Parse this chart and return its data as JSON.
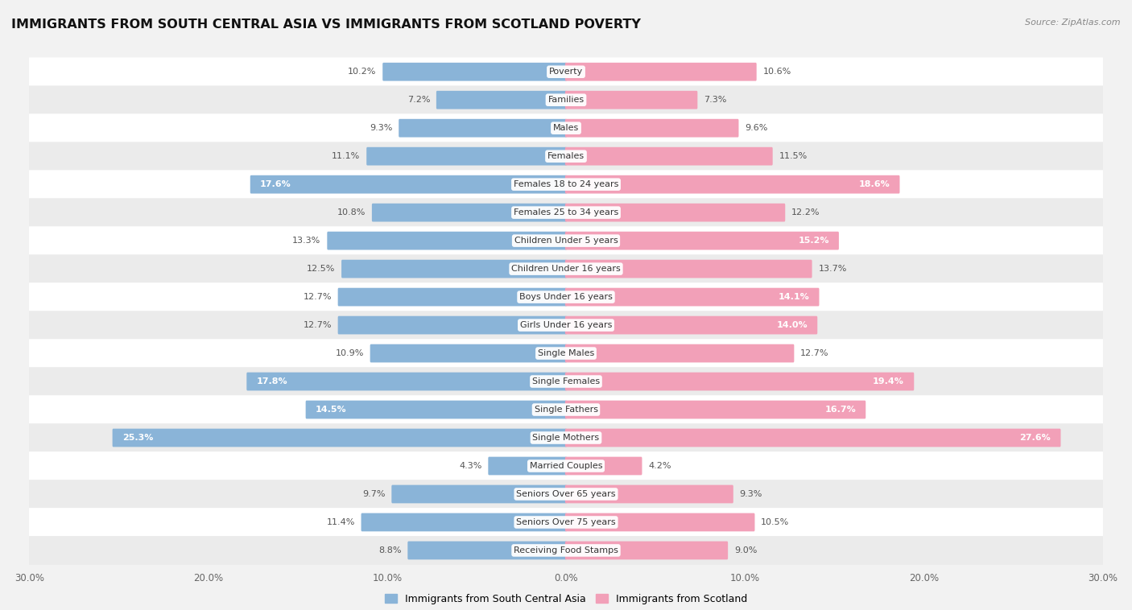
{
  "title": "IMMIGRANTS FROM SOUTH CENTRAL ASIA VS IMMIGRANTS FROM SCOTLAND POVERTY",
  "source": "Source: ZipAtlas.com",
  "categories": [
    "Poverty",
    "Families",
    "Males",
    "Females",
    "Females 18 to 24 years",
    "Females 25 to 34 years",
    "Children Under 5 years",
    "Children Under 16 years",
    "Boys Under 16 years",
    "Girls Under 16 years",
    "Single Males",
    "Single Females",
    "Single Fathers",
    "Single Mothers",
    "Married Couples",
    "Seniors Over 65 years",
    "Seniors Over 75 years",
    "Receiving Food Stamps"
  ],
  "left_values": [
    10.2,
    7.2,
    9.3,
    11.1,
    17.6,
    10.8,
    13.3,
    12.5,
    12.7,
    12.7,
    10.9,
    17.8,
    14.5,
    25.3,
    4.3,
    9.7,
    11.4,
    8.8
  ],
  "right_values": [
    10.6,
    7.3,
    9.6,
    11.5,
    18.6,
    12.2,
    15.2,
    13.7,
    14.1,
    14.0,
    12.7,
    19.4,
    16.7,
    27.6,
    4.2,
    9.3,
    10.5,
    9.0
  ],
  "left_color": "#8ab4d8",
  "right_color": "#f2a0b8",
  "left_label": "Immigrants from South Central Asia",
  "right_label": "Immigrants from Scotland",
  "axis_limit": 30.0,
  "bg_color": "#f2f2f2",
  "row_colors": [
    "#ffffff",
    "#ebebeb"
  ],
  "title_fontsize": 11.5,
  "cat_fontsize": 8,
  "val_fontsize": 8,
  "axis_fontsize": 8.5,
  "legend_fontsize": 9,
  "source_fontsize": 8
}
